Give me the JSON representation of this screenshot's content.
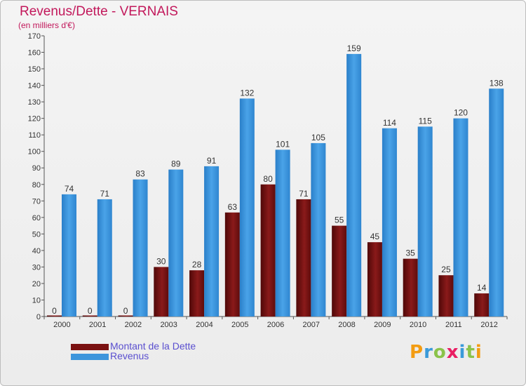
{
  "header": {
    "title": "Revenus/Dette - VERNAIS",
    "subtitle": "(en milliers d'€)"
  },
  "legend": {
    "items": [
      {
        "label": "Montant de la Dette",
        "color": "#7a1111"
      },
      {
        "label": "Revenus",
        "color": "#3d95dc"
      }
    ]
  },
  "logo": {
    "letters": [
      "P",
      "r",
      "o",
      "x",
      "i",
      "t",
      "i"
    ],
    "colors": [
      "#f39c12",
      "#3a9ad9",
      "#8bc34a",
      "#e91e63",
      "#3a9ad9",
      "#8bc34a",
      "#f39c12"
    ]
  },
  "chart_data": {
    "type": "bar",
    "categories": [
      "2000",
      "2001",
      "2002",
      "2003",
      "2004",
      "2005",
      "2006",
      "2007",
      "2008",
      "2009",
      "2010",
      "2011",
      "2012"
    ],
    "series": [
      {
        "name": "Montant de la Dette",
        "color": "#7a1111",
        "values": [
          0,
          0,
          0,
          30,
          28,
          63,
          80,
          71,
          55,
          45,
          35,
          25,
          14
        ]
      },
      {
        "name": "Revenus",
        "color": "#3d95dc",
        "values": [
          74,
          71,
          83,
          89,
          91,
          132,
          101,
          105,
          159,
          114,
          115,
          120,
          138
        ]
      }
    ],
    "ylim": [
      0,
      170
    ],
    "yticks": [
      0,
      10,
      20,
      30,
      40,
      50,
      60,
      70,
      80,
      90,
      100,
      110,
      120,
      130,
      140,
      150,
      160,
      170
    ],
    "grid": false,
    "legend_position": "bottom-left"
  }
}
